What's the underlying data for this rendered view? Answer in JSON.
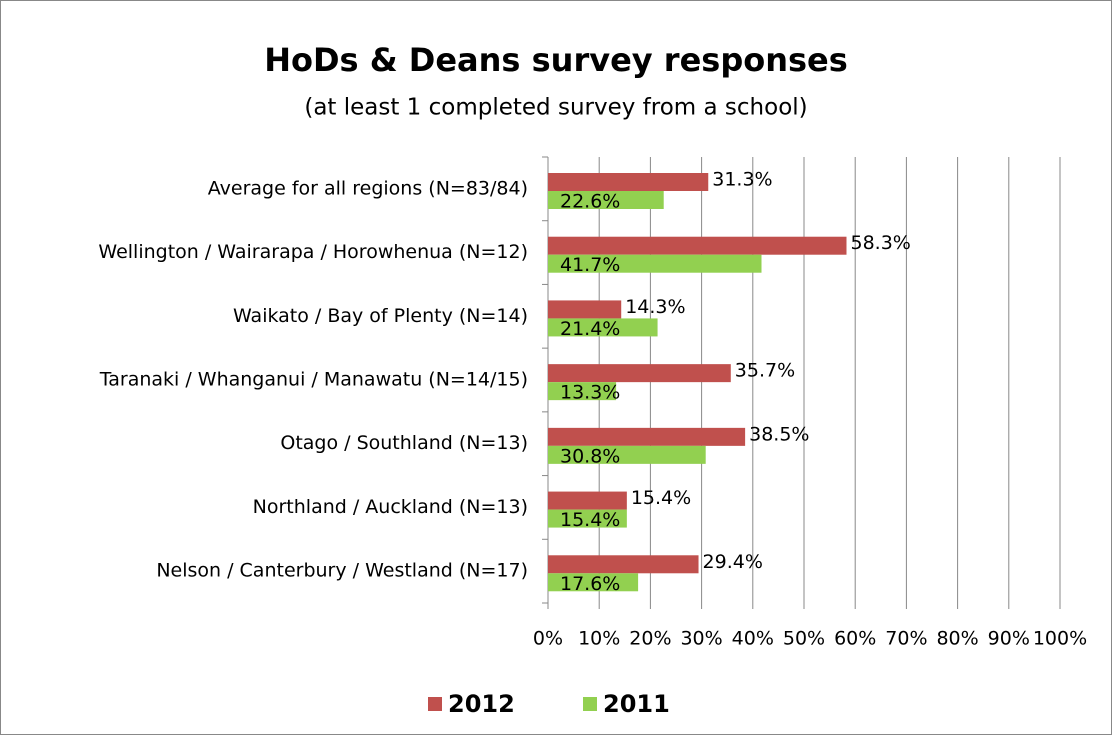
{
  "chart_data": {
    "type": "hbar",
    "title": "HoDs & Deans survey responses",
    "subtitle": "(at least 1 completed survey from a school)",
    "categories": [
      "Average for all regions (N=83/84)",
      "Wellington / Wairarapa / Horowhenua (N=12)",
      "Waikato / Bay of Plenty (N=14)",
      "Taranaki / Whanganui / Manawatu (N=14/15)",
      "Otago / Southland (N=13)",
      "Northland / Auckland (N=13)",
      "Nelson / Canterbury / Westland (N=17)"
    ],
    "series": [
      {
        "name": "2012",
        "color": "#c0504d",
        "values": [
          31.3,
          58.3,
          14.3,
          35.7,
          38.5,
          15.4,
          29.4
        ],
        "value_labels": [
          "31.3%",
          "58.3%",
          "14.3%",
          "35.7%",
          "38.5%",
          "15.4%",
          "29.4%"
        ]
      },
      {
        "name": "2011",
        "color": "#92d050",
        "values": [
          22.6,
          41.7,
          21.4,
          13.3,
          30.8,
          15.4,
          17.6
        ],
        "value_labels": [
          "22.6%",
          "41.7%",
          "21.4%",
          "13.3%",
          "30.8%",
          "15.4%",
          "17.6%"
        ]
      }
    ],
    "xlim": [
      0,
      100
    ],
    "xticks": [
      {
        "value": 0,
        "label": "0%"
      },
      {
        "value": 10,
        "label": "10%"
      },
      {
        "value": 20,
        "label": "20%"
      },
      {
        "value": 30,
        "label": "30%"
      },
      {
        "value": 40,
        "label": "40%"
      },
      {
        "value": 50,
        "label": "50%"
      },
      {
        "value": 60,
        "label": "60%"
      },
      {
        "value": 70,
        "label": "70%"
      },
      {
        "value": 80,
        "label": "80%"
      },
      {
        "value": 90,
        "label": "90%"
      },
      {
        "value": 100,
        "label": "100%"
      }
    ],
    "grid": true,
    "legend": "bottom"
  }
}
